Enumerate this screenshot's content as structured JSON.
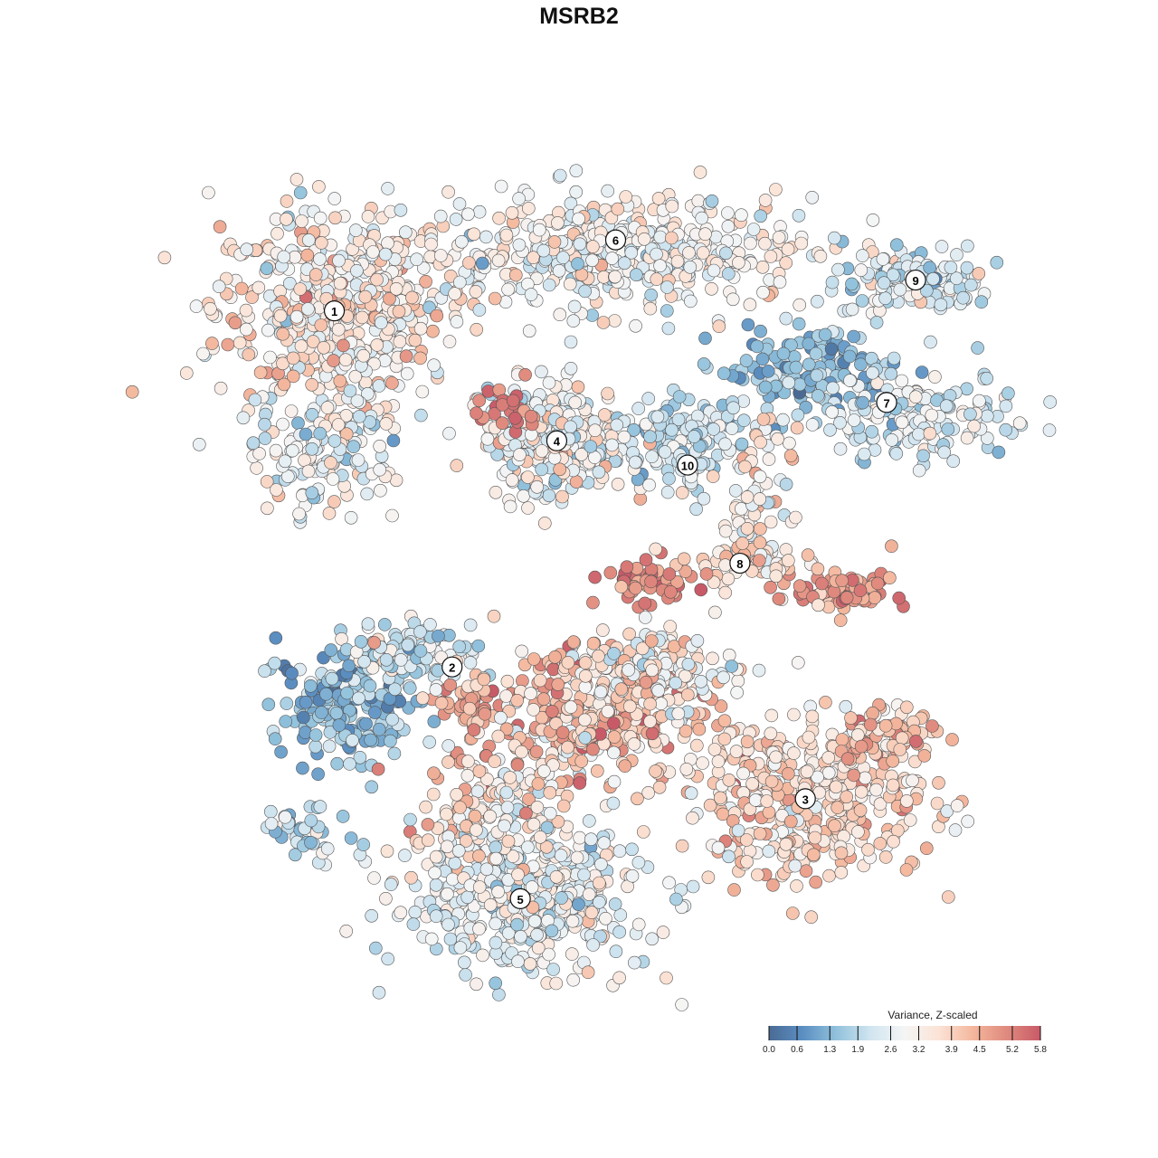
{
  "chart_data": {
    "type": "scatter",
    "title": "MSRB2",
    "xlabel": "",
    "ylabel": "",
    "xlim": [
      -45,
      45
    ],
    "ylim": [
      -45,
      45
    ],
    "grid": false,
    "axes_visible": false,
    "legend": {
      "title": "Variance, Z-scaled",
      "placement": "bottom-right",
      "ticks": [
        "0.0",
        "0.6",
        "1.3",
        "1.9",
        "2.6",
        "3.2",
        "3.9",
        "4.5",
        "5.2",
        "5.8"
      ],
      "range": [
        0.0,
        5.8
      ],
      "colors": [
        "#4a6a94",
        "#5b8fc2",
        "#92c2dc",
        "#d1e5f0",
        "#f5f5f5",
        "#fbe3d6",
        "#f4b89e",
        "#e08a7e",
        "#c85a68"
      ]
    },
    "cluster_labels": [
      {
        "label": "1",
        "x": -28.6,
        "y": 28.4
      },
      {
        "label": "2",
        "x": -16.0,
        "y": -9.7
      },
      {
        "label": "3",
        "x": 21.8,
        "y": -23.8
      },
      {
        "label": "4",
        "x": -4.8,
        "y": 14.5
      },
      {
        "label": "5",
        "x": -8.7,
        "y": -34.5
      },
      {
        "label": "6",
        "x": 1.5,
        "y": 36.0
      },
      {
        "label": "7",
        "x": 30.5,
        "y": 18.6
      },
      {
        "label": "8",
        "x": 14.8,
        "y": 1.4
      },
      {
        "label": "9",
        "x": 33.6,
        "y": 31.7
      },
      {
        "label": "10",
        "x": 9.2,
        "y": 11.9
      }
    ],
    "point_groups": [
      {
        "x": -28.6,
        "y": 28.4,
        "sx": 8.5,
        "sy": 7.5,
        "mean": 3.3,
        "sd": 0.7,
        "n": 520
      },
      {
        "x": -30.0,
        "y": 13.0,
        "sx": 5.0,
        "sy": 4.0,
        "mean": 2.7,
        "sd": 0.7,
        "n": 120
      },
      {
        "x": 1.5,
        "y": 34.5,
        "sx": 14.0,
        "sy": 4.0,
        "mean": 2.9,
        "sd": 0.6,
        "n": 480
      },
      {
        "x": 33.6,
        "y": 31.7,
        "sx": 5.5,
        "sy": 2.8,
        "mean": 2.4,
        "sd": 0.6,
        "n": 120
      },
      {
        "x": 22.0,
        "y": 22.0,
        "sx": 6.0,
        "sy": 3.0,
        "mean": 1.4,
        "sd": 0.5,
        "n": 140
      },
      {
        "x": 33.0,
        "y": 17.0,
        "sx": 8.0,
        "sy": 3.0,
        "mean": 2.3,
        "sd": 0.6,
        "n": 170
      },
      {
        "x": -4.8,
        "y": 14.5,
        "sx": 5.0,
        "sy": 4.0,
        "mean": 2.8,
        "sd": 0.8,
        "n": 300
      },
      {
        "x": -10.0,
        "y": 18.5,
        "sx": 3.0,
        "sy": 1.5,
        "mean": 5.4,
        "sd": 0.3,
        "n": 25
      },
      {
        "x": 9.0,
        "y": 15.0,
        "sx": 5.0,
        "sy": 2.5,
        "mean": 2.1,
        "sd": 0.7,
        "n": 110
      },
      {
        "x": 9.2,
        "y": 11.9,
        "sx": 2.0,
        "sy": 2.5,
        "mean": 2.3,
        "sd": 0.5,
        "n": 40
      },
      {
        "x": 16.5,
        "y": 8.0,
        "sx": 2.5,
        "sy": 5.0,
        "mean": 3.3,
        "sd": 0.6,
        "n": 70
      },
      {
        "x": 4.5,
        "y": -0.6,
        "sx": 3.0,
        "sy": 1.5,
        "mean": 5.0,
        "sd": 0.5,
        "n": 60
      },
      {
        "x": 26.0,
        "y": -1.6,
        "sx": 3.5,
        "sy": 1.5,
        "mean": 4.9,
        "sd": 0.5,
        "n": 80
      },
      {
        "x": 14.8,
        "y": 1.4,
        "sx": 5.0,
        "sy": 1.5,
        "mean": 3.8,
        "sd": 0.6,
        "n": 60
      },
      {
        "x": -27.0,
        "y": -13.5,
        "sx": 5.0,
        "sy": 4.0,
        "mean": 1.4,
        "sd": 0.6,
        "n": 200
      },
      {
        "x": -20.0,
        "y": -8.0,
        "sx": 4.5,
        "sy": 2.0,
        "mean": 2.4,
        "sd": 0.6,
        "n": 100
      },
      {
        "x": -14.5,
        "y": -13.5,
        "sx": 2.0,
        "sy": 1.5,
        "mean": 4.6,
        "sd": 0.4,
        "n": 40
      },
      {
        "x": -1.5,
        "y": -15.0,
        "sx": 9.0,
        "sy": 5.0,
        "mean": 4.1,
        "sd": 0.8,
        "n": 380
      },
      {
        "x": 5.0,
        "y": -10.0,
        "sx": 6.0,
        "sy": 3.0,
        "mean": 3.2,
        "sd": 0.7,
        "n": 150
      },
      {
        "x": 21.8,
        "y": -23.8,
        "sx": 9.0,
        "sy": 5.5,
        "mean": 3.7,
        "sd": 0.6,
        "n": 400
      },
      {
        "x": 31.0,
        "y": -17.0,
        "sx": 3.5,
        "sy": 2.5,
        "mean": 4.2,
        "sd": 0.5,
        "n": 80
      },
      {
        "x": -8.7,
        "y": -34.5,
        "sx": 9.0,
        "sy": 5.0,
        "mean": 2.7,
        "sd": 0.6,
        "n": 480
      },
      {
        "x": -12.0,
        "y": -25.0,
        "sx": 5.0,
        "sy": 4.0,
        "mean": 3.5,
        "sd": 0.7,
        "n": 140
      },
      {
        "x": -31.4,
        "y": -27.4,
        "sx": 3.5,
        "sy": 2.0,
        "mean": 2.1,
        "sd": 0.6,
        "n": 40
      }
    ]
  }
}
